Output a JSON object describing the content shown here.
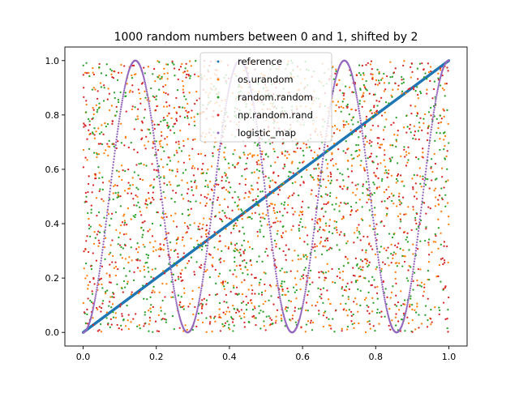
{
  "chart_data": {
    "type": "scatter",
    "title": "1000 random numbers between 0 and 1, shifted by 2",
    "xlabel": "",
    "ylabel": "",
    "xlim": [
      -0.05,
      1.05
    ],
    "ylim": [
      -0.05,
      1.05
    ],
    "xticks": [
      0.0,
      0.2,
      0.4,
      0.6,
      0.8,
      1.0
    ],
    "xtick_labels": [
      "0.0",
      "0.2",
      "0.4",
      "0.6",
      "0.8",
      "1.0"
    ],
    "yticks": [
      0.0,
      0.2,
      0.4,
      0.6,
      0.8,
      1.0
    ],
    "ytick_labels": [
      "0.0",
      "0.2",
      "0.4",
      "0.6",
      "0.8",
      "1.0"
    ],
    "grid": false,
    "legend_position": "top-center",
    "n_points_per_series": 1000,
    "series": [
      {
        "name": "reference",
        "color": "#1f77b4",
        "pattern": "y = x (x evenly spaced from 0 to 1)"
      },
      {
        "name": "os.urandom",
        "color": "#ff7f0e",
        "pattern": "uniform random on [0,1] x [0,1]"
      },
      {
        "name": "random.random",
        "color": "#2ca02c",
        "pattern": "uniform random on [0,1] x [0,1]"
      },
      {
        "name": "np.random.rand",
        "color": "#d62728",
        "pattern": "uniform random on [0,1] x [0,1]"
      },
      {
        "name": "logistic_map",
        "color": "#9467bd",
        "pattern": "y = sin^2(3.5·pi·x)"
      }
    ]
  }
}
